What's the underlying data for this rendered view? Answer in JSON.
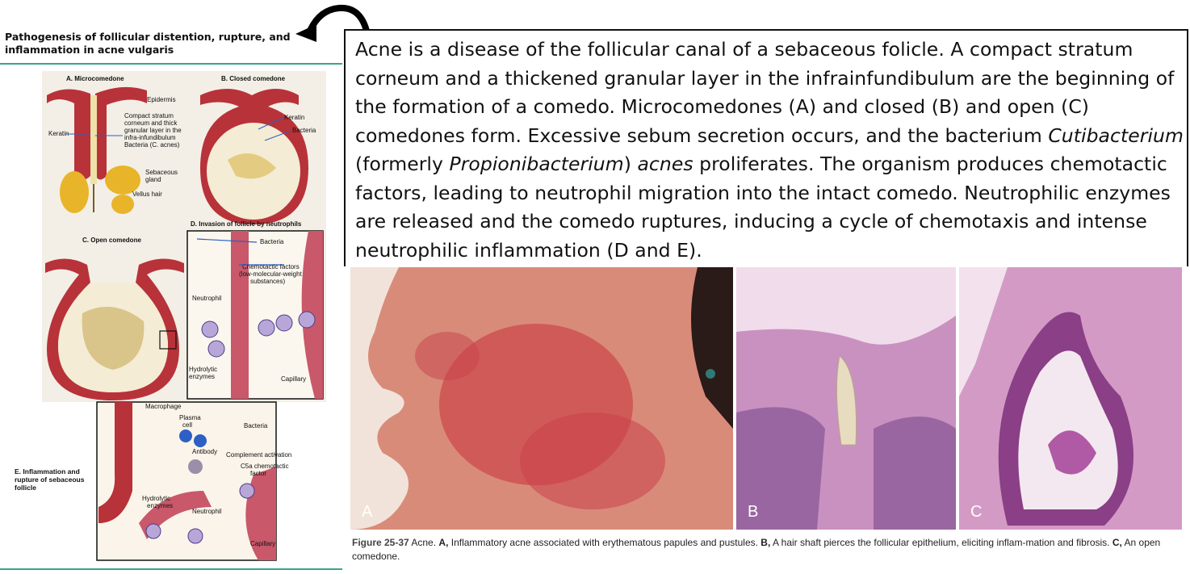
{
  "left": {
    "title": "Pathogenesis of follicular distention, rupture, and inflammation in acne vulgaris",
    "panel_a": {
      "heading": "A. Microcomedone",
      "labels": [
        "Epidermis",
        "Compact stratum",
        "corneum and thick",
        "granular layer in the",
        "infra-infundibulum",
        "Bacteria (C. acnes)",
        "Keratin",
        "Sebaceous",
        "gland",
        "Vellus hair"
      ]
    },
    "panel_b": {
      "heading": "B. Closed comedone",
      "labels": [
        "Keratin",
        "Bacteria"
      ]
    },
    "panel_c": {
      "heading": "C. Open comedone"
    },
    "panel_d": {
      "heading": "D. Invasion of follicle by neutrophils",
      "labels": [
        "Bacteria",
        "Chemotactic factors",
        "(low-molecular-weight",
        "substances)",
        "Neutrophil",
        "Hydrolytic",
        "enzymes",
        "Capillary"
      ]
    },
    "panel_e": {
      "heading": "E. Inflammation and rupture of sebaceous follicle",
      "labels": [
        "Macrophage",
        "Plasma",
        "cell",
        "Bacteria",
        "Antibody",
        "Complement activation",
        "C5a chemotactic",
        "factor",
        "Hydrolytic",
        "enzymes",
        "Neutrophil",
        "Capillary"
      ]
    }
  },
  "textbox": {
    "p1": "Acne is a disease of the follicular canal of a sebaceous folicle. A compact stratum corneum and a thickened granular layer in the infrainfundibulum are the beginning of the formation of a comedo. Microcomedones (A) and closed (B) and open (C) comedones form. Excessive sebum secretion occurs, and the bacterium ",
    "italic1": "Cutibacterium",
    "p2": " (formerly ",
    "italic2": "Propionibacterium",
    "p3": ") ",
    "italic3": "acnes",
    "p4": " proliferates. The organism produces chemotactic factors, leading to neutrophil migration into the intact comedo. Neutrophilic enzymes are released and the comedo ruptures, inducing a cycle of chemotaxis and intense neutrophilic inflammation (D and E)."
  },
  "photos": {
    "a": "A",
    "b": "B",
    "c": "C"
  },
  "caption": {
    "fig": "Figure 25-37",
    "t1": "  Acne. ",
    "a": "A,",
    "t2": " Inflammatory acne associated with erythematous papules and pustules. ",
    "b": "B,",
    "t3": " A hair shaft pierces the follicular epithelium, eliciting inflam-mation and fibrosis. ",
    "c": "C,",
    "t4": " An open comedone."
  }
}
